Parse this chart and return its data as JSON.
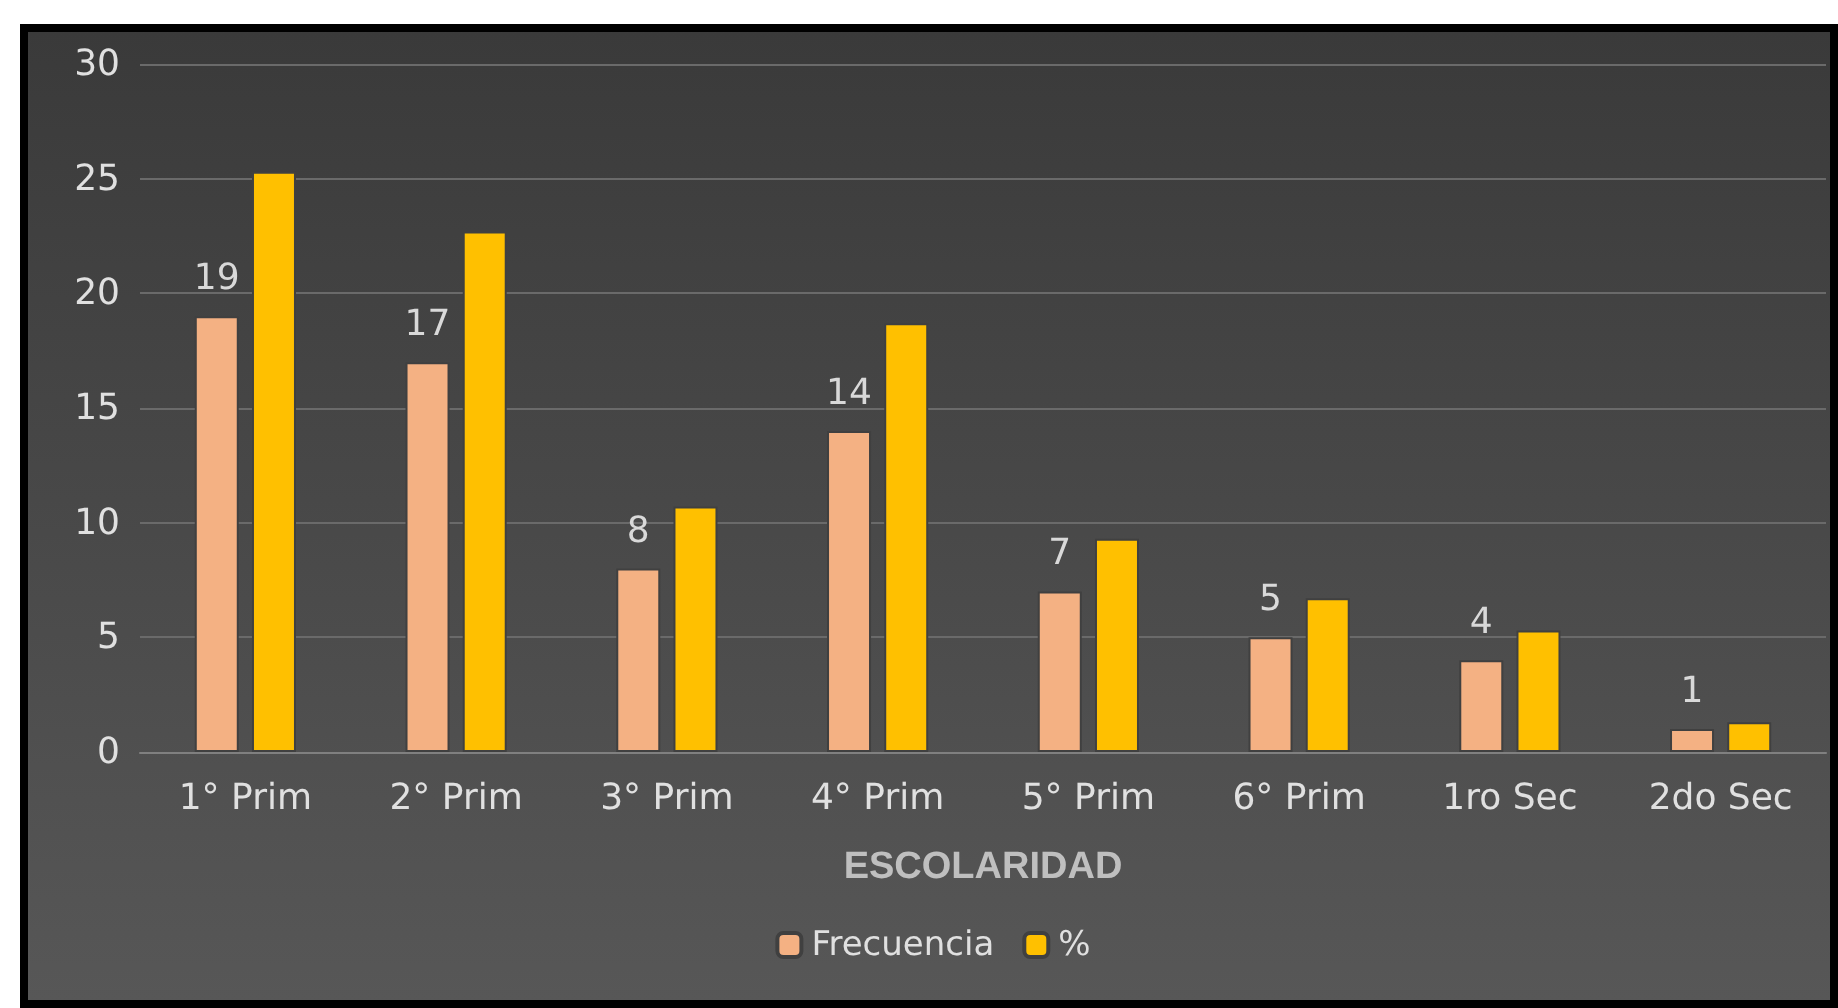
{
  "chart_data": {
    "type": "bar",
    "xlabel": "ESCOLARIDAD",
    "categories": [
      "1° Prim",
      "2° Prim",
      "3° Prim",
      "4° Prim",
      "5° Prim",
      "6° Prim",
      "1ro Sec",
      "2do Sec"
    ],
    "series": [
      {
        "name": "Frecuencia",
        "color": "#f4b183",
        "values": [
          19,
          17,
          8,
          14,
          7,
          5,
          4,
          1
        ],
        "value_labels": [
          "19",
          "17",
          "8",
          "14",
          "7",
          "5",
          "4",
          "1"
        ]
      },
      {
        "name": "%",
        "color": "#ffc000",
        "values": [
          25.3,
          22.7,
          10.7,
          18.7,
          9.3,
          6.7,
          5.3,
          1.3
        ]
      }
    ],
    "ylim": [
      0,
      30
    ],
    "yticks": [
      0,
      5,
      10,
      15,
      20,
      25,
      30
    ],
    "grid": "y",
    "legend": "bottom"
  }
}
